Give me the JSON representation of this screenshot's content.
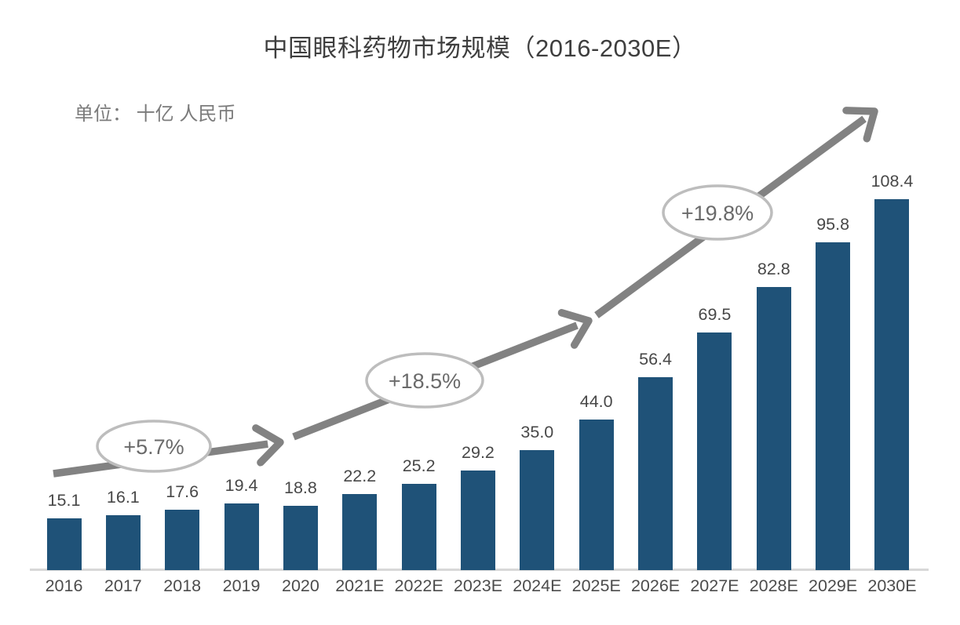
{
  "header": {
    "title": "中国眼科药物市场规模（2016-2030E）",
    "unit_label": "单位： 十亿 人民币"
  },
  "chart_data": {
    "type": "bar",
    "title": "中国眼科药物市场规模（2016-2030E）",
    "unit": "十亿 人民币",
    "categories": [
      "2016",
      "2017",
      "2018",
      "2019",
      "2020",
      "2021E",
      "2022E",
      "2023E",
      "2024E",
      "2025E",
      "2026E",
      "2027E",
      "2028E",
      "2029E",
      "2030E"
    ],
    "values": [
      15.1,
      16.1,
      17.6,
      19.4,
      18.8,
      22.2,
      25.2,
      29.2,
      35.0,
      44.0,
      56.4,
      69.5,
      82.8,
      95.8,
      108.4
    ],
    "xlabel": "",
    "ylabel": "",
    "ylim": [
      0,
      120
    ],
    "grid": false,
    "y_axis_visible": false,
    "legend": null,
    "annotations": [
      {
        "label": "+5.7%"
      },
      {
        "label": "+18.5%"
      },
      {
        "label": "+19.8%"
      }
    ],
    "colors": {
      "bar": "#1f5278",
      "trend_arrow": "#828282",
      "annotation_ellipse_stroke": "#bdbdbd",
      "annotation_text": "#6a6a6a",
      "axis_line": "#d8d8d8",
      "value_label_text": "#484848",
      "category_label_text": "#4c4c4c",
      "title_text": "#3e3e3e",
      "unit_text": "#7b7b7b",
      "background": "#ffffff"
    }
  }
}
